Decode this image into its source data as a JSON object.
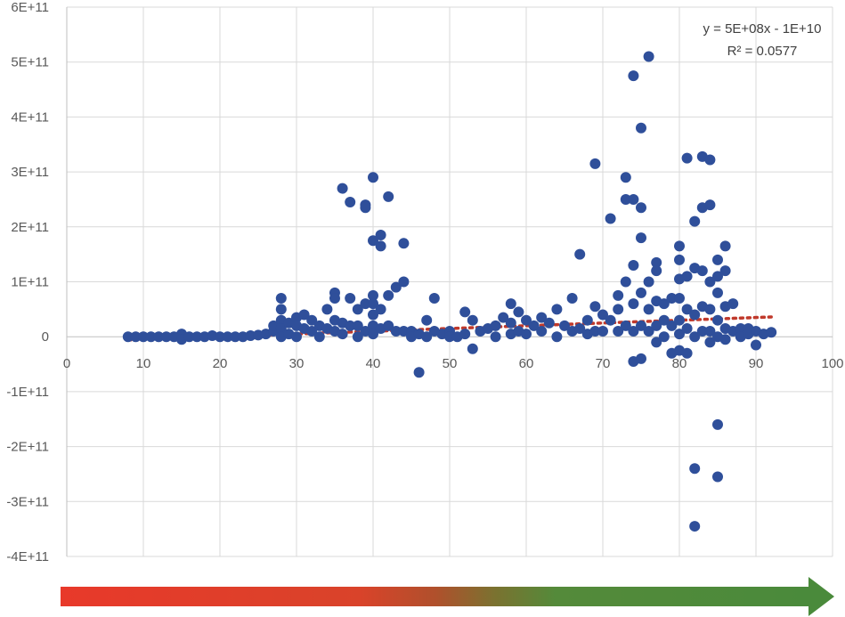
{
  "chart_data": {
    "type": "scatter",
    "title": "",
    "xlabel": "",
    "ylabel": "",
    "xlim": [
      0,
      100
    ],
    "ylim": [
      -400000000000,
      600000000000
    ],
    "x_ticks": [
      0,
      10,
      20,
      30,
      40,
      50,
      60,
      70,
      80,
      90,
      100
    ],
    "x_tick_labels": [
      "0",
      "10",
      "20",
      "30",
      "40",
      "50",
      "60",
      "70",
      "80",
      "90",
      "100"
    ],
    "y_ticks": [
      600000000000,
      500000000000,
      400000000000,
      300000000000,
      200000000000,
      100000000000,
      0,
      -100000000000,
      -200000000000,
      -300000000000,
      -400000000000
    ],
    "y_tick_labels": [
      "6E+11",
      "5E+11",
      "4E+11",
      "3E+11",
      "2E+11",
      "1E+11",
      "0",
      "-1E+11",
      "-2E+11",
      "-3E+11",
      "-4E+11"
    ],
    "grid": true,
    "marker_color": "#2f4f9a",
    "trendline": {
      "type": "linear",
      "slope": 500000000,
      "intercept": -10000000000,
      "x_range": [
        8,
        92
      ],
      "color": "#c0392b",
      "style": "dotted",
      "equation_label": "y = 5E+08x - 1E+10",
      "r2_label": "R² = 0.0577"
    },
    "gradient_arrow": {
      "colors": [
        "#e8392a",
        "#d9432a",
        "#b0502c",
        "#7a7230",
        "#548a3a",
        "#4a8a3b"
      ]
    },
    "series": [
      {
        "points": [
          [
            8,
            0
          ],
          [
            9,
            0
          ],
          [
            10,
            0
          ],
          [
            11,
            0
          ],
          [
            12,
            0
          ],
          [
            13,
            0
          ],
          [
            14,
            0
          ],
          [
            15,
            5000000000.0
          ],
          [
            15,
            -5000000000.0
          ],
          [
            16,
            0
          ],
          [
            17,
            0
          ],
          [
            18,
            0
          ],
          [
            19,
            2000000000.0
          ],
          [
            20,
            0
          ],
          [
            21,
            0
          ],
          [
            22,
            0
          ],
          [
            23,
            0
          ],
          [
            24,
            2000000000.0
          ],
          [
            25,
            3000000000.0
          ],
          [
            26,
            5000000000.0
          ],
          [
            27,
            10000000000.0
          ],
          [
            27,
            20000000000.0
          ],
          [
            28,
            70000000000.0
          ],
          [
            28,
            50000000000.0
          ],
          [
            28,
            30000000000.0
          ],
          [
            28,
            15000000000.0
          ],
          [
            28,
            0
          ],
          [
            29,
            25000000000.0
          ],
          [
            29,
            5000000000.0
          ],
          [
            30,
            35000000000.0
          ],
          [
            30,
            20000000000.0
          ],
          [
            30,
            0
          ],
          [
            31,
            40000000000.0
          ],
          [
            31,
            15000000000.0
          ],
          [
            32,
            30000000000.0
          ],
          [
            32,
            10000000000.0
          ],
          [
            33,
            20000000000.0
          ],
          [
            33,
            0
          ],
          [
            34,
            50000000000.0
          ],
          [
            34,
            15000000000.0
          ],
          [
            35,
            80000000000.0
          ],
          [
            35,
            70000000000.0
          ],
          [
            35,
            30000000000.0
          ],
          [
            35,
            10000000000.0
          ],
          [
            36,
            270000000000.0
          ],
          [
            36,
            25000000000.0
          ],
          [
            36,
            5000000000.0
          ],
          [
            37,
            245000000000.0
          ],
          [
            37,
            70000000000.0
          ],
          [
            37,
            20000000000.0
          ],
          [
            38,
            50000000000.0
          ],
          [
            38,
            20000000000.0
          ],
          [
            38,
            0
          ],
          [
            39,
            240000000000.0
          ],
          [
            39,
            235000000000.0
          ],
          [
            39,
            60000000000.0
          ],
          [
            39,
            10000000000.0
          ],
          [
            40,
            290000000000.0
          ],
          [
            40,
            175000000000.0
          ],
          [
            40,
            75000000000.0
          ],
          [
            40,
            60000000000.0
          ],
          [
            40,
            40000000000.0
          ],
          [
            40,
            20000000000.0
          ],
          [
            40,
            5000000000.0
          ],
          [
            41,
            185000000000.0
          ],
          [
            41,
            165000000000.0
          ],
          [
            41,
            50000000000.0
          ],
          [
            41,
            15000000000.0
          ],
          [
            42,
            255000000000.0
          ],
          [
            42,
            75000000000.0
          ],
          [
            42,
            20000000000.0
          ],
          [
            43,
            90000000000.0
          ],
          [
            43,
            10000000000.0
          ],
          [
            44,
            170000000000.0
          ],
          [
            44,
            100000000000.0
          ],
          [
            44,
            10000000000.0
          ],
          [
            45,
            10000000000.0
          ],
          [
            45,
            0
          ],
          [
            46,
            -65000000000.0
          ],
          [
            46,
            5000000000.0
          ],
          [
            47,
            30000000000.0
          ],
          [
            47,
            0
          ],
          [
            48,
            70000000000.0
          ],
          [
            48,
            10000000000.0
          ],
          [
            49,
            5000000000.0
          ],
          [
            50,
            10000000000.0
          ],
          [
            50,
            0
          ],
          [
            51,
            0
          ],
          [
            52,
            45000000000.0
          ],
          [
            52,
            5000000000.0
          ],
          [
            53,
            30000000000.0
          ],
          [
            53,
            -22000000000.0
          ],
          [
            54,
            10000000000.0
          ],
          [
            55,
            15000000000.0
          ],
          [
            56,
            20000000000.0
          ],
          [
            56,
            0
          ],
          [
            57,
            35000000000.0
          ],
          [
            58,
            60000000000.0
          ],
          [
            58,
            25000000000.0
          ],
          [
            58,
            5000000000.0
          ],
          [
            59,
            45000000000.0
          ],
          [
            59,
            10000000000.0
          ],
          [
            60,
            30000000000.0
          ],
          [
            60,
            5000000000.0
          ],
          [
            61,
            20000000000.0
          ],
          [
            62,
            35000000000.0
          ],
          [
            62,
            10000000000.0
          ],
          [
            63,
            25000000000.0
          ],
          [
            64,
            50000000000.0
          ],
          [
            64,
            0
          ],
          [
            65,
            20000000000.0
          ],
          [
            66,
            70000000000.0
          ],
          [
            66,
            10000000000.0
          ],
          [
            67,
            150000000000.0
          ],
          [
            67,
            15000000000.0
          ],
          [
            68,
            30000000000.0
          ],
          [
            68,
            5000000000.0
          ],
          [
            69,
            315000000000.0
          ],
          [
            69,
            55000000000.0
          ],
          [
            69,
            10000000000.0
          ],
          [
            70,
            40000000000.0
          ],
          [
            70,
            10000000000.0
          ],
          [
            71,
            215000000000.0
          ],
          [
            71,
            30000000000.0
          ],
          [
            72,
            75000000000.0
          ],
          [
            72,
            50000000000.0
          ],
          [
            72,
            10000000000.0
          ],
          [
            73,
            290000000000.0
          ],
          [
            73,
            250000000000.0
          ],
          [
            73,
            100000000000.0
          ],
          [
            73,
            20000000000.0
          ],
          [
            74,
            475000000000.0
          ],
          [
            74,
            250000000000.0
          ],
          [
            74,
            130000000000.0
          ],
          [
            74,
            60000000000.0
          ],
          [
            74,
            10000000000.0
          ],
          [
            74,
            -45000000000.0
          ],
          [
            75,
            380000000000.0
          ],
          [
            75,
            235000000000.0
          ],
          [
            75,
            180000000000.0
          ],
          [
            75,
            80000000000.0
          ],
          [
            75,
            20000000000.0
          ],
          [
            75,
            -40000000000.0
          ],
          [
            76,
            510000000000.0
          ],
          [
            76,
            100000000000.0
          ],
          [
            76,
            50000000000.0
          ],
          [
            76,
            10000000000.0
          ],
          [
            77,
            135000000000.0
          ],
          [
            77,
            120000000000.0
          ],
          [
            77,
            65000000000.0
          ],
          [
            77,
            20000000000.0
          ],
          [
            77,
            -10000000000.0
          ],
          [
            78,
            60000000000.0
          ],
          [
            78,
            30000000000.0
          ],
          [
            78,
            0
          ],
          [
            79,
            70000000000.0
          ],
          [
            79,
            20000000000.0
          ],
          [
            79,
            -30000000000.0
          ],
          [
            80,
            165000000000.0
          ],
          [
            80,
            140000000000.0
          ],
          [
            80,
            105000000000.0
          ],
          [
            80,
            70000000000.0
          ],
          [
            80,
            30000000000.0
          ],
          [
            80,
            5000000000.0
          ],
          [
            80,
            -25000000000.0
          ],
          [
            81,
            325000000000.0
          ],
          [
            81,
            110000000000.0
          ],
          [
            81,
            50000000000.0
          ],
          [
            81,
            15000000000.0
          ],
          [
            81,
            -30000000000.0
          ],
          [
            82,
            210000000000.0
          ],
          [
            82,
            125000000000.0
          ],
          [
            82,
            40000000000.0
          ],
          [
            82,
            0
          ],
          [
            82,
            -240000000000.0
          ],
          [
            82,
            -345000000000.0
          ],
          [
            83,
            328000000000.0
          ],
          [
            83,
            235000000000.0
          ],
          [
            83,
            120000000000.0
          ],
          [
            83,
            55000000000.0
          ],
          [
            83,
            10000000000.0
          ],
          [
            84,
            322000000000.0
          ],
          [
            84,
            240000000000.0
          ],
          [
            84,
            100000000000.0
          ],
          [
            84,
            50000000000.0
          ],
          [
            84,
            10000000000.0
          ],
          [
            84,
            -10000000000.0
          ],
          [
            85,
            140000000000.0
          ],
          [
            85,
            110000000000.0
          ],
          [
            85,
            80000000000.0
          ],
          [
            85,
            30000000000.0
          ],
          [
            85,
            0
          ],
          [
            85,
            -160000000000.0
          ],
          [
            85,
            -255000000000.0
          ],
          [
            86,
            165000000000.0
          ],
          [
            86,
            120000000000.0
          ],
          [
            86,
            55000000000.0
          ],
          [
            86,
            15000000000.0
          ],
          [
            86,
            -5000000000.0
          ],
          [
            87,
            60000000000.0
          ],
          [
            87,
            10000000000.0
          ],
          [
            88,
            15000000000.0
          ],
          [
            88,
            0
          ],
          [
            89,
            15000000000.0
          ],
          [
            89,
            5000000000.0
          ],
          [
            90,
            10000000000.0
          ],
          [
            90,
            -15000000000.0
          ],
          [
            91,
            5000000000.0
          ],
          [
            92,
            8000000000.0
          ]
        ]
      }
    ]
  }
}
